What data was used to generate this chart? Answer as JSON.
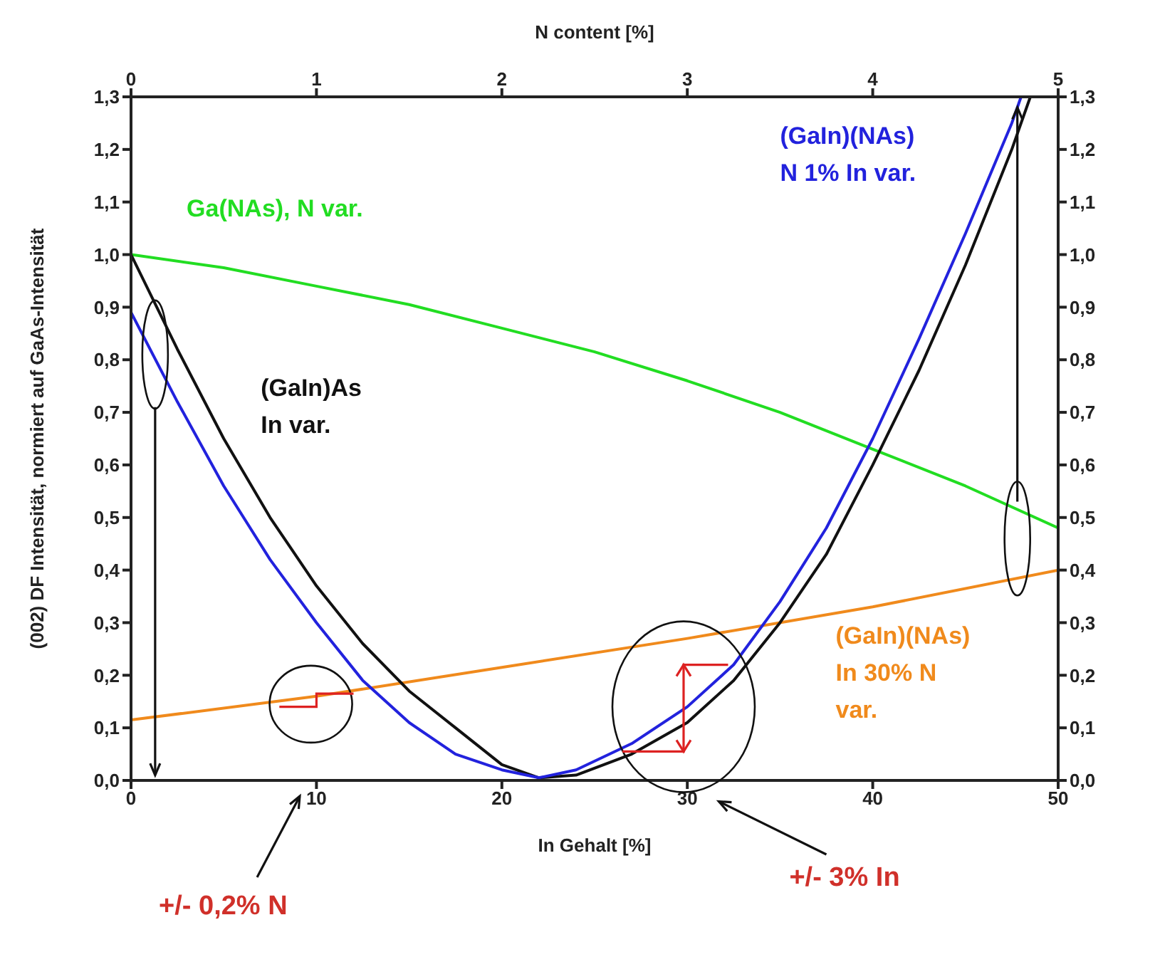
{
  "chart_data": {
    "type": "line",
    "xlabel": "In Gehalt [%]",
    "x2label": "N content [%]",
    "ylabel": "(002) DF Intensität, normiert auf GaAs-Intensität",
    "xlim": [
      0,
      50
    ],
    "xticks": [
      0,
      10,
      20,
      30,
      40,
      50
    ],
    "x2lim": [
      0,
      5
    ],
    "x2ticks": [
      0,
      1,
      2,
      3,
      4,
      5
    ],
    "ylim": [
      0,
      1.3
    ],
    "yticks": [
      {
        "value": 0,
        "label": "0,0"
      },
      {
        "value": 0.1,
        "label": "0,1"
      },
      {
        "value": 0.2,
        "label": "0,2"
      },
      {
        "value": 0.3,
        "label": "0,3"
      },
      {
        "value": 0.4,
        "label": "0,4"
      },
      {
        "value": 0.5,
        "label": "0,5"
      },
      {
        "value": 0.6,
        "label": "0,6"
      },
      {
        "value": 0.7,
        "label": "0,7"
      },
      {
        "value": 0.8,
        "label": "0,8"
      },
      {
        "value": 0.9,
        "label": "0,9"
      },
      {
        "value": 1.0,
        "label": "1,0"
      },
      {
        "value": 1.1,
        "label": "1,1"
      },
      {
        "value": 1.2,
        "label": "1,2"
      },
      {
        "value": 1.3,
        "label": "1,3"
      }
    ],
    "y2lim": [
      0,
      1.3
    ],
    "y2ticks": [
      {
        "value": 0,
        "label": "0,0"
      },
      {
        "value": 0.1,
        "label": "0,1"
      },
      {
        "value": 0.2,
        "label": "0,2"
      },
      {
        "value": 0.3,
        "label": "0,3"
      },
      {
        "value": 0.4,
        "label": "0,4"
      },
      {
        "value": 0.5,
        "label": "0,5"
      },
      {
        "value": 0.6,
        "label": "0,6"
      },
      {
        "value": 0.7,
        "label": "0,7"
      },
      {
        "value": 0.8,
        "label": "0,8"
      },
      {
        "value": 0.9,
        "label": "0,9"
      },
      {
        "value": 1.0,
        "label": "1,0"
      },
      {
        "value": 1.1,
        "label": "1,1"
      },
      {
        "value": 1.2,
        "label": "1,2"
      },
      {
        "value": 1.3,
        "label": "1,3"
      }
    ],
    "marker": "none",
    "line_style": "solid",
    "series": [
      {
        "name": "Ga(NAs), N var.",
        "color": "#22dd22",
        "axis": "x2",
        "x": [
          0,
          0.5,
          1,
          1.5,
          2,
          2.5,
          3,
          3.5,
          4,
          4.5,
          5
        ],
        "values": [
          1.0,
          0.975,
          0.94,
          0.905,
          0.86,
          0.815,
          0.76,
          0.7,
          0.63,
          0.56,
          0.48
        ]
      },
      {
        "name": "(GaIn)(NAs) In 30% N var.",
        "color": "#f08a1c",
        "axis": "x2",
        "x": [
          0,
          1,
          2,
          3,
          4,
          5
        ],
        "values": [
          0.115,
          0.16,
          0.215,
          0.27,
          0.33,
          0.4
        ]
      },
      {
        "name": "(GaIn)As In var.",
        "color": "#111111",
        "x": [
          0,
          2.5,
          5,
          7.5,
          10,
          12.5,
          15,
          17.5,
          20,
          22,
          24,
          27,
          30,
          32.5,
          35,
          37.5,
          40,
          42.5,
          45,
          47.5,
          48.5
        ],
        "values": [
          1.0,
          0.82,
          0.65,
          0.5,
          0.37,
          0.26,
          0.17,
          0.1,
          0.03,
          0.005,
          0.01,
          0.05,
          0.11,
          0.19,
          0.3,
          0.43,
          0.6,
          0.78,
          0.98,
          1.2,
          1.3
        ]
      },
      {
        "name": "(GaIn)(NAs) N 1% In var.",
        "color": "#2222dd",
        "x": [
          0,
          2.5,
          5,
          7.5,
          10,
          12.5,
          15,
          17.5,
          20,
          22,
          24,
          27,
          30,
          32.5,
          35,
          37.5,
          40,
          42.5,
          45,
          47.5,
          48
        ],
        "values": [
          0.89,
          0.72,
          0.56,
          0.42,
          0.3,
          0.19,
          0.11,
          0.05,
          0.02,
          0.005,
          0.02,
          0.07,
          0.14,
          0.22,
          0.34,
          0.48,
          0.65,
          0.84,
          1.04,
          1.25,
          1.3
        ]
      }
    ],
    "annotations": [
      "+/- 0,2% N",
      "+/- 3% In"
    ]
  }
}
